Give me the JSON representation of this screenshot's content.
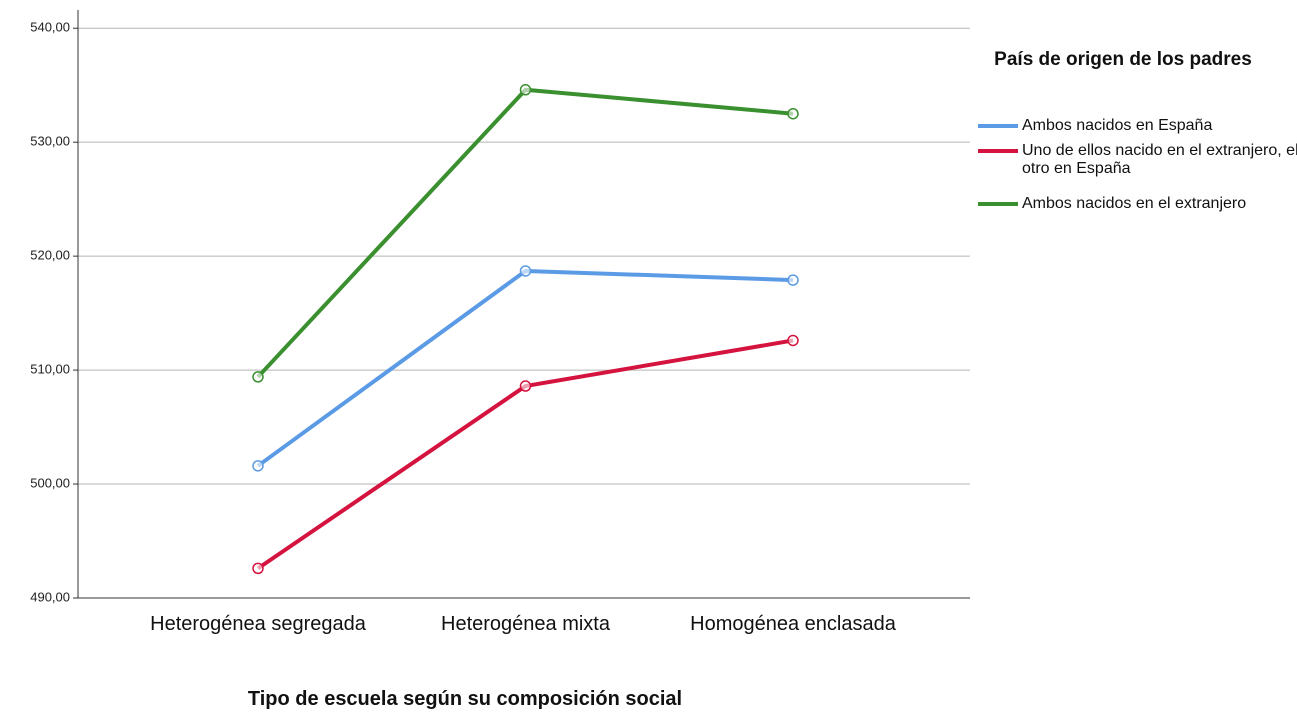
{
  "chart_data": {
    "type": "line",
    "x_label": "Tipo de escuela según su composición social",
    "legend_title": "País de origen de los padres",
    "legend_position": "right",
    "grid": true,
    "categories": [
      "Heterogénea segregada",
      "Heterogénea mixta",
      "Homogénea enclasada"
    ],
    "series": [
      {
        "name": "Ambos nacidos en España",
        "color": "#5b9be6",
        "values": [
          501.6,
          518.7,
          517.9
        ]
      },
      {
        "name": "Uno de ellos nacido en el extranjero, el otro en España",
        "color": "#d5133f",
        "values": [
          492.6,
          508.6,
          512.6
        ]
      },
      {
        "name": "Ambos nacidos en el extranjero",
        "color": "#3a8f2f",
        "values": [
          509.4,
          534.6,
          532.5
        ]
      }
    ],
    "ylim": [
      490,
      541.6
    ],
    "yticks": [
      {
        "value": 490,
        "label": "490,00"
      },
      {
        "value": 500,
        "label": "500,00"
      },
      {
        "value": 510,
        "label": "510,00"
      },
      {
        "value": 520,
        "label": "520,00"
      },
      {
        "value": 530,
        "label": "530,00"
      },
      {
        "value": 540,
        "label": "540,00"
      }
    ]
  }
}
